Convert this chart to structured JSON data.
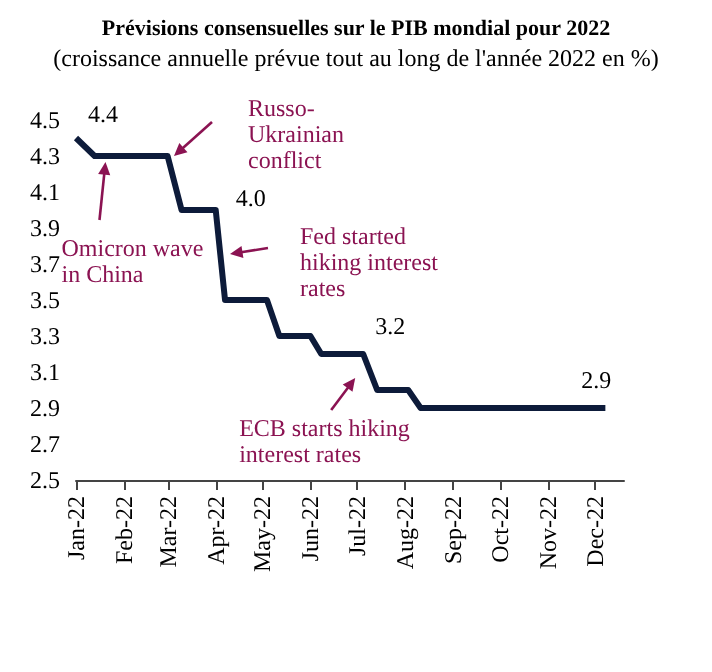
{
  "chart_data": {
    "type": "line",
    "title": "Prévisions consensuelles sur le PIB mondial pour 2022",
    "subtitle": "(croissance annuelle prévue tout au long de l'année 2022 en %)",
    "x": [
      "2022-01-01",
      "2022-01-13",
      "2022-03-01",
      "2022-03-10",
      "2022-04-01",
      "2022-04-07",
      "2022-05-04",
      "2022-05-12",
      "2022-06-01",
      "2022-06-08",
      "2022-07-05",
      "2022-07-14",
      "2022-08-03",
      "2022-08-11",
      "2022-12-08"
    ],
    "series": [
      {
        "color": "#0d1b3a",
        "values": [
          4.4,
          4.3,
          4.3,
          4.0,
          4.0,
          3.5,
          3.5,
          3.3,
          3.3,
          3.2,
          3.2,
          3.0,
          3.0,
          2.9,
          2.9
        ]
      }
    ],
    "xlim": [
      "2022-01-01",
      "2022-12-20"
    ],
    "xticks": [
      {
        "value": "2022-01-01",
        "label": "Jan-22"
      },
      {
        "value": "2022-02-01",
        "label": "Feb-22"
      },
      {
        "value": "2022-03-01",
        "label": "Mar-22"
      },
      {
        "value": "2022-04-01",
        "label": "Apr-22"
      },
      {
        "value": "2022-05-01",
        "label": "May-22"
      },
      {
        "value": "2022-06-01",
        "label": "Jun-22"
      },
      {
        "value": "2022-07-01",
        "label": "Jul-22"
      },
      {
        "value": "2022-08-01",
        "label": "Aug-22"
      },
      {
        "value": "2022-09-01",
        "label": "Sep-22"
      },
      {
        "value": "2022-10-01",
        "label": "Oct-22"
      },
      {
        "value": "2022-11-01",
        "label": "Nov-22"
      },
      {
        "value": "2022-12-01",
        "label": "Dec-22"
      }
    ],
    "ylim": [
      2.5,
      4.5
    ],
    "yticks": [
      2.5,
      2.7,
      2.9,
      3.1,
      3.3,
      3.5,
      3.7,
      3.9,
      4.1,
      4.3,
      4.5
    ],
    "annotations": [
      {
        "text": "4.4",
        "x": "2022-01-01",
        "y": 4.4
      },
      {
        "text": "4.0",
        "x": "2022-04-01",
        "y": 4.0
      },
      {
        "text": "3.2",
        "x": "2022-07-05",
        "y": 3.2
      },
      {
        "text": "2.9",
        "x": "2022-12-08",
        "y": 2.9
      },
      {
        "text": "Omicron wave in China",
        "x": "2022-01-20",
        "y": 4.3
      },
      "Russo-Ukrainian conflict",
      "Fed started hiking interest rates",
      {
        "text": "ECB starts hiking interest rates",
        "x": "2022-07-05",
        "y": 3.2
      }
    ],
    "grid": false,
    "marker": "none",
    "line_style": "solid"
  }
}
